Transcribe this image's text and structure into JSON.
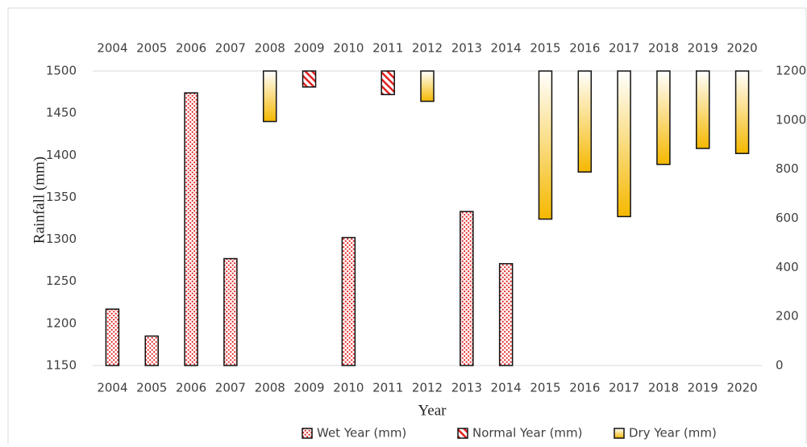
{
  "chart_data": {
    "type": "bar",
    "categories": [
      "2004",
      "2005",
      "2006",
      "2007",
      "2008",
      "2009",
      "2010",
      "2011",
      "2012",
      "2013",
      "2014",
      "2015",
      "2016",
      "2017",
      "2018",
      "2019",
      "2020"
    ],
    "x_label": "Year",
    "y_label": "Rainfall (mm)",
    "ylim": [
      1150,
      1500
    ],
    "yticks": [
      1150,
      1200,
      1250,
      1300,
      1350,
      1400,
      1450,
      1500
    ],
    "y2lim": [
      0,
      1200
    ],
    "y2ticks": [
      0,
      200,
      400,
      600,
      800,
      1000,
      1200
    ],
    "series": [
      {
        "name": "Wet Year  (mm)",
        "color": "#e02020",
        "pattern": "dots",
        "anchor": "bottom",
        "values": [
          1217,
          1185,
          1474,
          1277,
          null,
          null,
          1302,
          null,
          null,
          1333,
          1271,
          null,
          null,
          null,
          null,
          null,
          null
        ]
      },
      {
        "name": "Normal Year (mm)",
        "color": "#e02020",
        "pattern": "stripes",
        "anchor": "top",
        "values": [
          null,
          null,
          null,
          null,
          null,
          1481,
          null,
          1472,
          null,
          null,
          null,
          null,
          null,
          null,
          null,
          null,
          null
        ]
      },
      {
        "name": "Dry Year (mm)",
        "color": "#f5b800",
        "pattern": "gradient",
        "anchor": "top",
        "values": [
          null,
          null,
          null,
          null,
          1440,
          null,
          null,
          null,
          1464,
          null,
          null,
          1324,
          1380,
          1327,
          1389,
          1408,
          1402
        ]
      }
    ]
  }
}
